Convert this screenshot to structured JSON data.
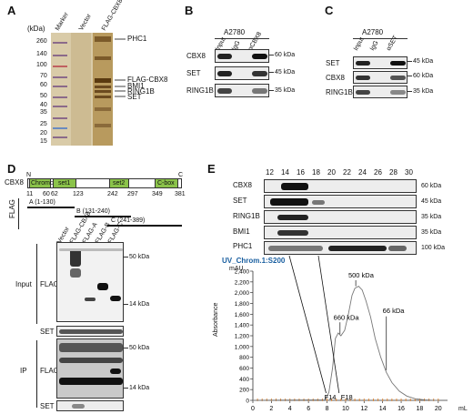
{
  "panel_labels": {
    "a": "A",
    "b": "B",
    "c": "C",
    "d": "D",
    "e": "E"
  },
  "panelA": {
    "kda_unit": "(kDa)",
    "lanes": [
      "Marker",
      "Vector",
      "FLAG-CBX8"
    ],
    "markers": [
      "260",
      "140",
      "100",
      "70",
      "60",
      "50",
      "40",
      "35",
      "25",
      "20",
      "15"
    ],
    "annotations": [
      "PHC1",
      "FLAG-CBX8",
      "BMI1",
      "RING1B",
      "SET"
    ]
  },
  "panelB": {
    "cell_line": "A2780",
    "lanes": [
      "Input",
      "IgG",
      "αCBX8"
    ],
    "rows": [
      "CBX8",
      "SET",
      "RING1B"
    ],
    "sizes": [
      "60 kDa",
      "45 kDa",
      "35 kDa"
    ]
  },
  "panelC": {
    "cell_line": "A2780",
    "lanes": [
      "Input",
      "IgG",
      "αSET"
    ],
    "rows": [
      "SET",
      "CBX8",
      "RING1B"
    ],
    "sizes": [
      "45 kDa",
      "60 kDa",
      "35 kDa"
    ]
  },
  "panelD": {
    "protein": "CBX8",
    "n_term": "N",
    "c_term": "C",
    "domains": [
      "Chromo",
      "set1",
      "set2",
      "C-box"
    ],
    "positions": [
      "11",
      "60",
      "62",
      "123",
      "242",
      "297",
      "349",
      "381"
    ],
    "flag_label": "FLAG",
    "fragments": [
      "A (1-130)",
      "B (131-240)",
      "C (241-389)"
    ],
    "lanes": [
      "Vector",
      "FLAG-CBX8",
      "FLAG-A",
      "FLAG-B",
      "FLAG-C"
    ],
    "input_label": "Input",
    "ip_label": "IP",
    "flag_row": "FLAG",
    "set_row": "SET",
    "sizes": [
      "50 kDa",
      "14 kDa",
      "50 kDa",
      "14 kDa"
    ]
  },
  "panelE": {
    "fractions": [
      "12",
      "14",
      "16",
      "18",
      "20",
      "22",
      "24",
      "26",
      "28",
      "30"
    ],
    "rows": [
      "CBX8",
      "SET",
      "RING1B",
      "BMI1",
      "PHC1"
    ],
    "sizes": [
      "60 kDa",
      "45 kDa",
      "35 kDa",
      "35 kDa",
      "100 kDa"
    ],
    "chart_title": "UV_Chrom.1:S200",
    "y_unit": "mAU",
    "ylabel": "Absorbance",
    "x_unit": "mL",
    "peak_labels": [
      "500 kDa",
      "660 kDa",
      "66 kDa"
    ],
    "fraction_labels": [
      "F14",
      "F18"
    ]
  },
  "chart_data": {
    "type": "line",
    "title": "UV_Chrom.1:S200",
    "xlabel": "mL",
    "ylabel": "Absorbance",
    "y_unit": "mAU",
    "xlim": [
      0,
      21
    ],
    "ylim": [
      0,
      2400
    ],
    "xticks": [
      0,
      2,
      4,
      6,
      8,
      10,
      12,
      14,
      16,
      18,
      20
    ],
    "yticks": [
      0,
      200,
      400,
      600,
      800,
      1000,
      1200,
      1400,
      1600,
      1800,
      2000,
      2200,
      2400
    ],
    "series": [
      {
        "x": [
          0,
          7.8,
          8.2,
          8.6,
          8.9,
          9.2,
          9.5,
          9.9,
          10.3,
          10.7,
          11.0,
          11.4,
          11.8,
          12.2,
          12.7,
          13.2,
          13.8,
          14.4,
          15.0,
          15.8,
          16.6,
          17.5,
          18.5,
          19.5,
          20.0
        ],
        "values": [
          0,
          10,
          150,
          600,
          1150,
          1250,
          1200,
          1300,
          1600,
          1950,
          2080,
          2120,
          2050,
          1850,
          1550,
          1150,
          800,
          520,
          330,
          170,
          80,
          30,
          8,
          2,
          0
        ]
      }
    ],
    "annotations": [
      {
        "text": "500 kDa",
        "x": 11.1
      },
      {
        "text": "660 kDa",
        "x": 9.4
      },
      {
        "text": "66 kDa",
        "x": 14.4
      },
      {
        "text": "F14",
        "x": 7.9
      },
      {
        "text": "F18",
        "x": 9.3
      }
    ]
  }
}
